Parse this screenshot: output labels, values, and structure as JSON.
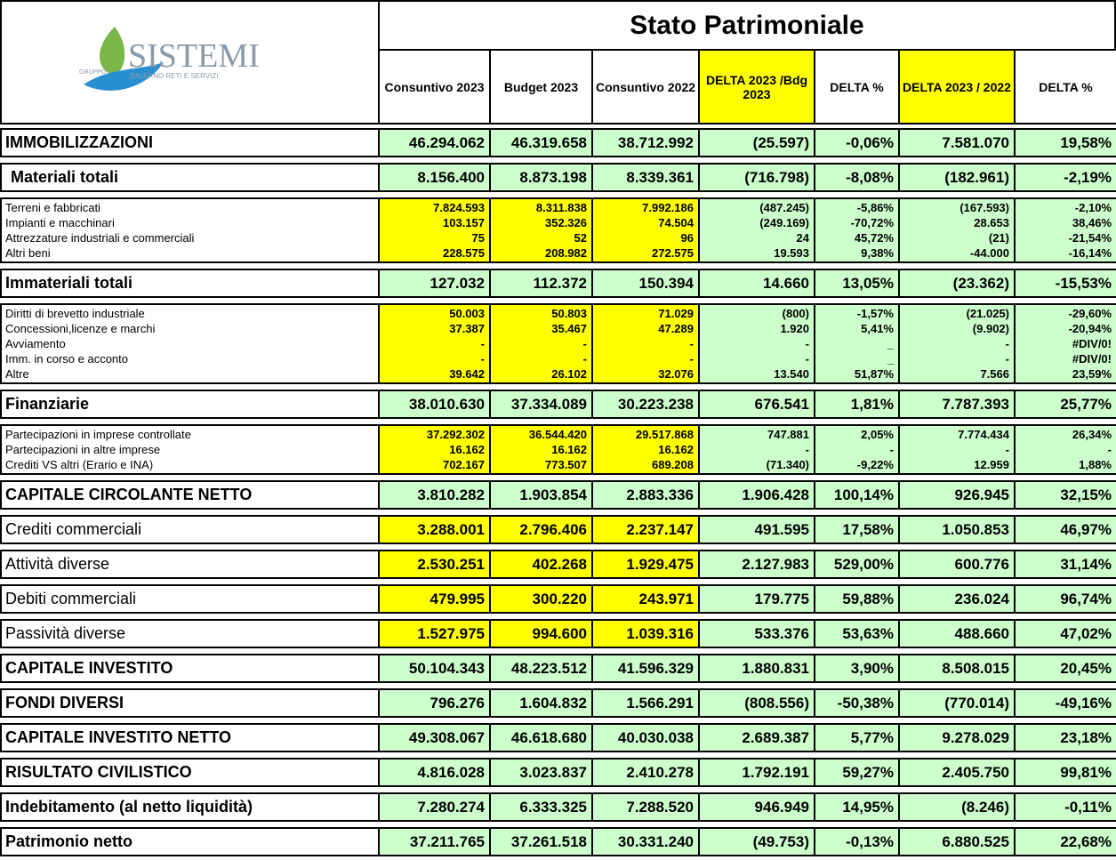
{
  "logo": {
    "group": "GRUPPO",
    "name": "SISTEMI",
    "tagline": "SALERNO RETI E SERVIZI"
  },
  "title": "Stato Patrimoniale",
  "columns": [
    "Consuntivo 2023",
    "Budget 2023",
    "Consuntivo 2022",
    "DELTA 2023 /Bdg 2023",
    "DELTA %",
    "DELTA 2023 / 2022",
    "DELTA %"
  ],
  "sections": [
    {
      "label": "IMMOBILIZZAZIONI",
      "values": [
        "46.294.062",
        "46.319.658",
        "38.712.992",
        "(25.597)",
        "-0,06%",
        "7.581.070",
        "19,58%"
      ]
    },
    {
      "label": "Materiali totali",
      "values": [
        "8.156.400",
        "8.873.198",
        "8.339.361",
        "(716.798)",
        "-8,08%",
        "(182.961)",
        "-2,19%"
      ]
    },
    {
      "rows": [
        {
          "label": "Terreni e fabbricati",
          "values": [
            "7.824.593",
            "8.311.838",
            "7.992.186",
            "(487.245)",
            "-5,86%",
            "(167.593)",
            "-2,10%"
          ]
        },
        {
          "label": "Impianti e macchinari",
          "values": [
            "103.157",
            "352.326",
            "74.504",
            "(249.169)",
            "-70,72%",
            "28.653",
            "38,46%"
          ]
        },
        {
          "label": "Attrezzature industriali e commerciali",
          "values": [
            "75",
            "52",
            "96",
            "24",
            "45,72%",
            "(21)",
            "-21,54%"
          ]
        },
        {
          "label": "Altri beni",
          "values": [
            "228.575",
            "208.982",
            "272.575",
            "19.593",
            "9,38%",
            "-44.000",
            "-16,14%"
          ]
        }
      ]
    },
    {
      "label": "Immateriali totali",
      "values": [
        "127.032",
        "112.372",
        "150.394",
        "14.660",
        "13,05%",
        "(23.362)",
        "-15,53%"
      ]
    },
    {
      "rows": [
        {
          "label": "Diritti di brevetto industriale",
          "values": [
            "50.003",
            "50.803",
            "71.029",
            "(800)",
            "-1,57%",
            "(21.025)",
            "-29,60%"
          ]
        },
        {
          "label": "Concessioni,licenze e marchi",
          "values": [
            "37.387",
            "35.467",
            "47.289",
            "1.920",
            "5,41%",
            "(9.902)",
            "-20,94%"
          ]
        },
        {
          "label": "Avviamento",
          "values": [
            "-",
            "-",
            "-",
            "-",
            "_",
            "-",
            "#DIV/0!"
          ]
        },
        {
          "label": "Imm. in corso e acconto",
          "values": [
            "-",
            "-",
            "-",
            "-",
            "_",
            "-",
            "#DIV/0!"
          ]
        },
        {
          "label": "Altre",
          "values": [
            "39.642",
            "26.102",
            "32.076",
            "13.540",
            "51,87%",
            "7.566",
            "23,59%"
          ]
        }
      ]
    },
    {
      "label": "Finanziarie",
      "values": [
        "38.010.630",
        "37.334.089",
        "30.223.238",
        "676.541",
        "1,81%",
        "7.787.393",
        "25,77%"
      ]
    },
    {
      "rows": [
        {
          "label": "Partecipazioni in imprese controllate",
          "values": [
            "37.292.302",
            "36.544.420",
            "29.517.868",
            "747.881",
            "2,05%",
            "7.774.434",
            "26,34%"
          ]
        },
        {
          "label": "Partecipazioni in altre imprese",
          "values": [
            "16.162",
            "16.162",
            "16.162",
            "-",
            "-",
            "-",
            "-"
          ]
        },
        {
          "label": "Crediti VS altri (Erario e INA)",
          "values": [
            "702.167",
            "773.507",
            "689.208",
            "(71.340)",
            "-9,22%",
            "12.959",
            "1,88%"
          ]
        }
      ]
    },
    {
      "label": "CAPITALE CIRCOLANTE NETTO",
      "values": [
        "3.810.282",
        "1.903.854",
        "2.883.336",
        "1.906.428",
        "100,14%",
        "926.945",
        "32,15%"
      ]
    },
    {
      "label": "Crediti commerciali",
      "values": [
        "3.288.001",
        "2.796.406",
        "2.237.147",
        "491.595",
        "17,58%",
        "1.050.853",
        "46,97%"
      ]
    },
    {
      "label": "Attività diverse",
      "values": [
        "2.530.251",
        "402.268",
        "1.929.475",
        "2.127.983",
        "529,00%",
        "600.776",
        "31,14%"
      ]
    },
    {
      "label": "Debiti commerciali",
      "values": [
        "479.995",
        "300.220",
        "243.971",
        "179.775",
        "59,88%",
        "236.024",
        "96,74%"
      ]
    },
    {
      "label": "Passività diverse",
      "values": [
        "1.527.975",
        "994.600",
        "1.039.316",
        "533.376",
        "53,63%",
        "488.660",
        "47,02%"
      ]
    },
    {
      "label": "CAPITALE INVESTITO",
      "values": [
        "50.104.343",
        "48.223.512",
        "41.596.329",
        "1.880.831",
        "3,90%",
        "8.508.015",
        "20,45%"
      ]
    },
    {
      "label": "FONDI DIVERSI",
      "values": [
        "796.276",
        "1.604.832",
        "1.566.291",
        "(808.556)",
        "-50,38%",
        "(770.014)",
        "-49,16%"
      ]
    },
    {
      "label": "CAPITALE INVESTITO NETTO",
      "values": [
        "49.308.067",
        "46.618.680",
        "40.030.038",
        "2.689.387",
        "5,77%",
        "9.278.029",
        "23,18%"
      ]
    },
    {
      "label": "RISULTATO CIVILISTICO",
      "values": [
        "4.816.028",
        "3.023.837",
        "2.410.278",
        "1.792.191",
        "59,27%",
        "2.405.750",
        "99,81%"
      ]
    },
    {
      "label": "Indebitamento (al netto liquidità)",
      "values": [
        "7.280.274",
        "6.333.325",
        "7.288.520",
        "946.949",
        "14,95%",
        "(8.246)",
        "-0,11%"
      ]
    },
    {
      "label": "Patrimonio netto",
      "values": [
        "37.211.765",
        "37.261.518",
        "30.331.240",
        "(49.753)",
        "-0,13%",
        "6.880.525",
        "22,68%"
      ]
    }
  ]
}
